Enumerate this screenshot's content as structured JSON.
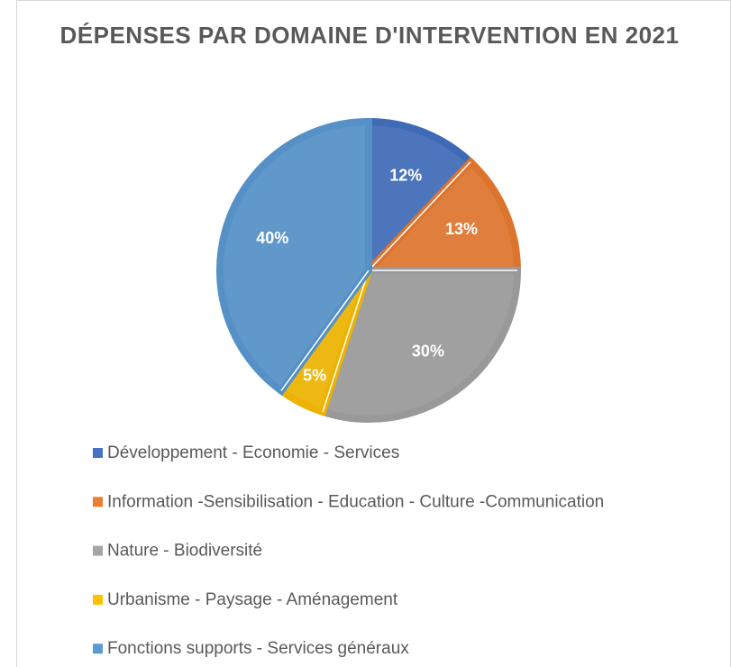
{
  "chart_data": {
    "type": "pie",
    "title": "DÉPENSES PAR DOMAINE D'INTERVENTION EN 2021",
    "categories": [
      "Développement - Economie - Services",
      "Information -Sensibilisation - Education - Culture -Communication",
      "Nature - Biodiversité",
      "Urbanisme - Paysage - Aménagement",
      "Fonctions supports - Services généraux"
    ],
    "values": [
      12,
      13,
      30,
      5,
      40
    ],
    "value_labels": [
      "12%",
      "13%",
      "30%",
      "5%",
      "40%"
    ],
    "colors": [
      "#4472c4",
      "#ed7d31",
      "#a5a5a5",
      "#ffc000",
      "#5b9bd5"
    ],
    "legend": "bottom"
  }
}
